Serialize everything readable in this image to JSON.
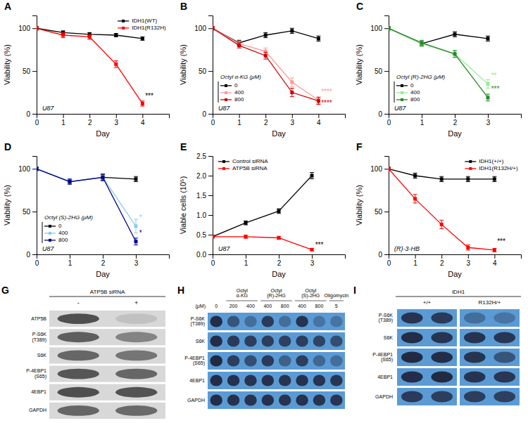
{
  "chart_data": [
    {
      "type": "line",
      "title": "A",
      "xlabel": "Day",
      "ylabel": "Viability (%)",
      "x": [
        0,
        1,
        2,
        3,
        4
      ],
      "series": [
        {
          "name": "IDH1(WT)",
          "color": "black",
          "marker": "square",
          "values": [
            100,
            95,
            93,
            92,
            88
          ],
          "errors": [
            2,
            2,
            2,
            2,
            2
          ]
        },
        {
          "name": "IDH1(R132H)",
          "color": "red",
          "marker": "square",
          "values": [
            100,
            92,
            90,
            58,
            12
          ],
          "errors": [
            2,
            3,
            3,
            4,
            3
          ]
        }
      ],
      "xlim": [
        0,
        5
      ],
      "ylim": [
        0,
        115
      ],
      "xticks": [
        0,
        1,
        2,
        3,
        4
      ],
      "yticks": [
        0,
        50,
        100
      ],
      "legend": "upper right",
      "annotations": [
        {
          "text": "U87"
        },
        {
          "text": "***",
          "x": 4.1,
          "y": 18,
          "color": "black"
        }
      ]
    },
    {
      "type": "line",
      "title": "B",
      "xlabel": "Day",
      "ylabel": "Viability (%)",
      "x": [
        0,
        1,
        2,
        3,
        4
      ],
      "series": [
        {
          "name": "0",
          "color": "black",
          "marker": "square",
          "values": [
            100,
            83,
            92,
            97,
            88
          ],
          "errors": [
            2,
            3,
            3,
            3,
            3
          ]
        },
        {
          "name": "400",
          "color": "#ff9999",
          "marker": "square",
          "values": [
            100,
            82,
            73,
            37,
            16
          ],
          "errors": [
            2,
            3,
            4,
            5,
            4
          ]
        },
        {
          "name": "800",
          "color": "#cc0000",
          "marker": "square",
          "values": [
            100,
            80,
            68,
            25,
            15
          ],
          "errors": [
            2,
            3,
            4,
            5,
            4
          ]
        }
      ],
      "xlim": [
        0,
        5
      ],
      "ylim": [
        0,
        115
      ],
      "xticks": [
        0,
        1,
        2,
        3,
        4
      ],
      "yticks": [
        0,
        50,
        100
      ],
      "legend": "lower left",
      "legend_title": "Octyl α-KG (μM)",
      "annotations": [
        {
          "text": "U87"
        },
        {
          "text": "****",
          "x": 4.1,
          "y": 23,
          "color": "#ff9999"
        },
        {
          "text": "****",
          "x": 4.1,
          "y": 10,
          "color": "#cc0000"
        }
      ]
    },
    {
      "type": "line",
      "title": "C",
      "xlabel": "Day",
      "ylabel": "Viability (%)",
      "x": [
        0,
        1,
        2,
        3
      ],
      "series": [
        {
          "name": "0",
          "color": "black",
          "marker": "square",
          "values": [
            100,
            82,
            93,
            88
          ],
          "errors": [
            2,
            3,
            3,
            3
          ]
        },
        {
          "name": "400",
          "color": "#90EE90",
          "marker": "square",
          "values": [
            100,
            82,
            70,
            35
          ],
          "errors": [
            2,
            3,
            4,
            5
          ]
        },
        {
          "name": "800",
          "color": "#228B22",
          "marker": "square",
          "values": [
            100,
            83,
            70,
            19
          ],
          "errors": [
            2,
            3,
            4,
            4
          ]
        }
      ],
      "xlim": [
        0,
        4
      ],
      "ylim": [
        0,
        115
      ],
      "xticks": [
        0,
        1,
        2,
        3
      ],
      "yticks": [
        0,
        50,
        100
      ],
      "legend": "lower left",
      "legend_title": "Octyl (R)-2HG (μM)",
      "annotations": [
        {
          "text": "U87"
        },
        {
          "text": "**",
          "x": 3.1,
          "y": 42,
          "color": "#90EE90"
        },
        {
          "text": "***",
          "x": 3.1,
          "y": 26,
          "color": "#228B22"
        }
      ]
    },
    {
      "type": "line",
      "title": "D",
      "xlabel": "Day",
      "ylabel": "Viability (%)",
      "x": [
        0,
        1,
        2,
        3
      ],
      "series": [
        {
          "name": "0",
          "color": "black",
          "marker": "square",
          "values": [
            100,
            85,
            90,
            88
          ],
          "errors": [
            2,
            3,
            3,
            3
          ]
        },
        {
          "name": "400",
          "color": "#87CEEB",
          "marker": "square",
          "values": [
            100,
            85,
            90,
            33
          ],
          "errors": [
            2,
            3,
            4,
            8
          ]
        },
        {
          "name": "800",
          "color": "#00008B",
          "marker": "square",
          "values": [
            100,
            85,
            90,
            15
          ],
          "errors": [
            2,
            3,
            4,
            4
          ]
        }
      ],
      "xlim": [
        0,
        4
      ],
      "ylim": [
        0,
        115
      ],
      "xticks": [
        0,
        1,
        2,
        3
      ],
      "yticks": [
        0,
        50,
        100
      ],
      "legend": "lower left",
      "legend_title": "Octyl (S)-2HG (μM)",
      "annotations": [
        {
          "text": "U87"
        },
        {
          "text": "*",
          "x": 3.1,
          "y": 40,
          "color": "#87CEEB"
        },
        {
          "text": "*",
          "x": 3.1,
          "y": 22,
          "color": "#00008B"
        }
      ]
    },
    {
      "type": "line",
      "title": "E",
      "xlabel": "Day",
      "ylabel": "Viable cells (10⁵)",
      "x": [
        0,
        1,
        2,
        3
      ],
      "series": [
        {
          "name": "Control siRNA",
          "color": "black",
          "marker": "square",
          "values": [
            0.45,
            0.8,
            1.1,
            2.0
          ],
          "errors": [
            0.03,
            0.05,
            0.06,
            0.08
          ]
        },
        {
          "name": "ATP5B siRNA",
          "color": "red",
          "marker": "square",
          "values": [
            0.45,
            0.45,
            0.42,
            0.12
          ],
          "errors": [
            0.03,
            0.04,
            0.04,
            0.03
          ]
        }
      ],
      "xlim": [
        0,
        4
      ],
      "ylim": [
        0,
        2.5
      ],
      "xticks": [
        0,
        1,
        2,
        3
      ],
      "yticks": [
        {
          "value": 0,
          "label": "0.0"
        },
        0.5,
        {
          "value": 1,
          "label": "1.0"
        },
        1.5,
        {
          "value": 2,
          "label": "2.0"
        },
        2.5
      ],
      "legend": "upper left",
      "annotations": [
        {
          "text": "U87"
        },
        {
          "text": "***",
          "x": 3.1,
          "y": 0.18,
          "color": "black"
        }
      ]
    },
    {
      "type": "line",
      "title": "F",
      "xlabel": "Day",
      "ylabel": "Viability (%)",
      "x": [
        0,
        1,
        2,
        3,
        4
      ],
      "series": [
        {
          "name": "IDH1(+/+)",
          "color": "black",
          "marker": "square",
          "values": [
            100,
            92,
            88,
            88,
            88
          ],
          "errors": [
            2,
            3,
            3,
            3,
            3
          ]
        },
        {
          "name": "IDH1(R132H/+)",
          "color": "red",
          "marker": "square",
          "values": [
            100,
            65,
            35,
            8,
            5
          ],
          "errors": [
            2,
            5,
            5,
            3,
            2
          ]
        }
      ],
      "xlim": [
        0,
        5
      ],
      "ylim": [
        0,
        115
      ],
      "xticks": [
        0,
        1,
        2,
        3,
        4
      ],
      "yticks": [
        0,
        50,
        100
      ],
      "legend": "upper right",
      "annotations": [
        {
          "text": "(R)-3-HB"
        },
        {
          "text": "***",
          "x": 4.1,
          "y": 12,
          "color": "black"
        }
      ]
    },
    {
      "type": "blot",
      "title": "G",
      "header": "ATP5B siRNA",
      "columns": [
        "-",
        "+"
      ],
      "rows": [
        "ATP5B",
        "P-S6K\n(T389)",
        "S6K",
        "P-4EBP1\n(S65)",
        "4EBP1",
        "GAPDH"
      ],
      "values": [
        [
          0.9,
          0.15
        ],
        [
          0.8,
          0.55
        ],
        [
          0.75,
          0.65
        ],
        [
          0.85,
          0.75
        ],
        [
          0.9,
          0.88
        ],
        [
          0.75,
          0.72
        ]
      ],
      "color": "#404040",
      "background_color": "#d8d8d8"
    },
    {
      "type": "blot",
      "title": "H",
      "groups": [
        "Octyl\nα-KG",
        "Octyl\n(R)-2HG",
        "Octyl\n(S)-2HG",
        "Oligomycin"
      ],
      "column_groups": [
        null,
        0,
        0,
        1,
        1,
        2,
        2,
        3
      ],
      "column_label": "(μM)",
      "columns": [
        "0",
        "200",
        "400",
        "400",
        "800",
        "400",
        "800",
        "5"
      ],
      "rows": [
        "P-S6K\n(T389)",
        "S6K",
        "P-4EBP1\n(S65)",
        "4EBP1",
        "GAPDH"
      ],
      "values": [
        [
          0.85,
          0.55,
          0.35,
          0.75,
          0.35,
          0.8,
          0.3,
          0.3
        ],
        [
          0.85,
          0.75,
          0.72,
          0.72,
          0.7,
          0.72,
          0.68,
          0.6
        ],
        [
          0.88,
          0.72,
          0.6,
          0.75,
          0.45,
          0.72,
          0.4,
          0.35
        ],
        [
          0.85,
          0.82,
          0.8,
          0.82,
          0.8,
          0.82,
          0.8,
          0.78
        ],
        [
          0.85,
          0.82,
          0.8,
          0.82,
          0.8,
          0.82,
          0.8,
          0.78
        ]
      ],
      "color": "#1a1a2e",
      "background_color": "#5B9BD5"
    },
    {
      "type": "blot",
      "title": "I",
      "header": "IDH1",
      "groups": [
        "+/+",
        "R132H/+"
      ],
      "rows": [
        "P-S6K\n(T389)",
        "S6K",
        "P-4EBP1\n(S65)",
        "4EBP1",
        "GAPDH"
      ],
      "values": [
        [
          [
            0.8,
            0.75
          ],
          [
            0.35,
            0.3
          ]
        ],
        [
          [
            0.85,
            0.8
          ],
          [
            0.8,
            0.78
          ]
        ],
        [
          [
            0.88,
            0.85
          ],
          [
            0.8,
            0.55
          ]
        ],
        [
          [
            0.85,
            0.88
          ],
          [
            0.8,
            0.78
          ]
        ],
        [
          [
            0.75,
            0.72
          ],
          [
            0.72,
            0.7
          ]
        ]
      ],
      "color": "#1a1a2e",
      "background_color": "#5B9BD5"
    }
  ]
}
